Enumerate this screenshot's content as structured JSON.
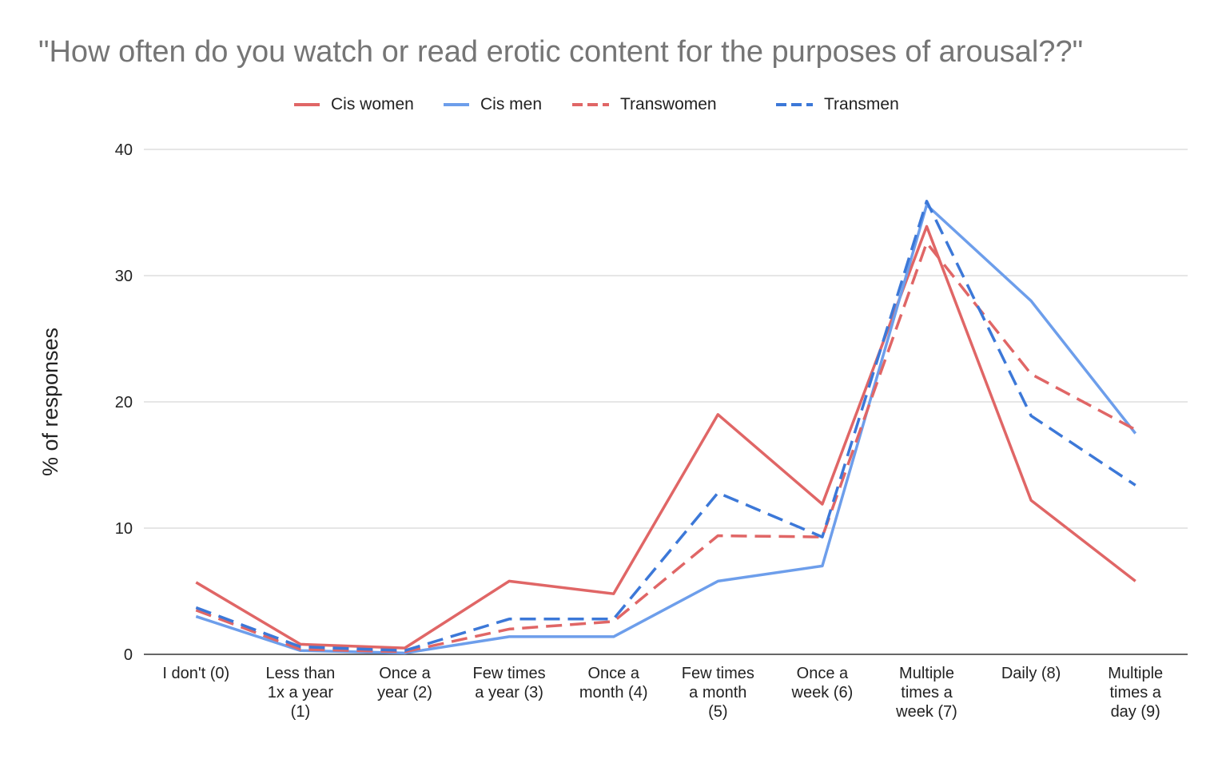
{
  "chart_data": {
    "type": "line",
    "title": "\"How often do you watch or read erotic content for the purposes of arousal??\"",
    "xlabel": "",
    "ylabel": "% of responses",
    "ylim": [
      0,
      40
    ],
    "yticks": [
      0,
      10,
      20,
      30,
      40
    ],
    "grid": true,
    "legend": "top",
    "categories": [
      [
        "I don't (0)"
      ],
      [
        "Less than",
        "1x a year",
        "(1)"
      ],
      [
        "Once a",
        "year (2)"
      ],
      [
        "Few times",
        "a year (3)"
      ],
      [
        "Once a",
        "month (4)"
      ],
      [
        "Few times",
        "a month",
        "(5)"
      ],
      [
        "Once a",
        "week (6)"
      ],
      [
        "Multiple",
        "times a",
        "week (7)"
      ],
      [
        "Daily (8)"
      ],
      [
        "Multiple",
        "times a",
        "day (9)"
      ]
    ],
    "series": [
      {
        "name": "Cis women",
        "color": "#e06666",
        "dashed": false,
        "values": [
          5.7,
          0.8,
          0.5,
          5.8,
          4.8,
          19.0,
          11.9,
          33.9,
          12.2,
          5.8
        ]
      },
      {
        "name": "Cis men",
        "color": "#6d9eeb",
        "dashed": false,
        "values": [
          3.0,
          0.3,
          0.1,
          1.4,
          1.4,
          5.8,
          7.0,
          35.6,
          28.0,
          17.5
        ]
      },
      {
        "name": "Transwomen",
        "color": "#e06666",
        "dashed": true,
        "values": [
          3.5,
          0.4,
          0.2,
          2.0,
          2.6,
          9.4,
          9.3,
          32.6,
          22.2,
          17.8
        ]
      },
      {
        "name": "Transmen",
        "color": "#3c78d8",
        "dashed": true,
        "values": [
          3.7,
          0.6,
          0.3,
          2.8,
          2.8,
          12.8,
          9.3,
          35.9,
          18.9,
          13.4
        ]
      }
    ]
  }
}
